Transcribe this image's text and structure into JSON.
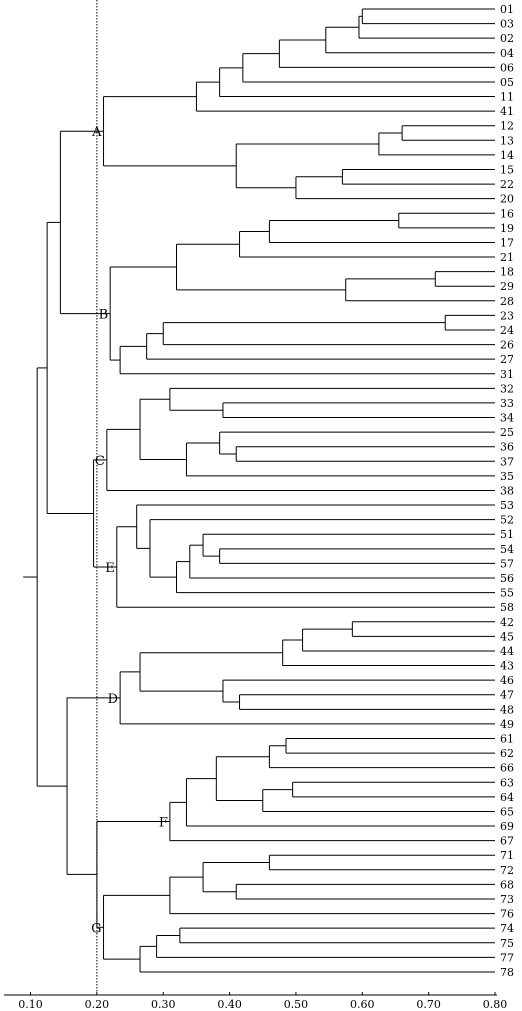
{
  "chart_data": {
    "type": "dendrogram",
    "title": "",
    "xlabel": "",
    "ylabel": "",
    "xlim": [
      0.06,
      0.8
    ],
    "x_ticks": [
      "0.10",
      "0.20",
      "0.30",
      "0.40",
      "0.50",
      "0.60",
      "0.70",
      "0.80"
    ],
    "cut_line": 0.2,
    "grid": false,
    "leaves": [
      "01",
      "03",
      "02",
      "04",
      "06",
      "05",
      "11",
      "41",
      "12",
      "13",
      "14",
      "15",
      "22",
      "20",
      "16",
      "19",
      "17",
      "21",
      "18",
      "29",
      "28",
      "23",
      "24",
      "26",
      "27",
      "31",
      "32",
      "33",
      "34",
      "25",
      "36",
      "37",
      "35",
      "38",
      "53",
      "52",
      "51",
      "54",
      "57",
      "56",
      "55",
      "58",
      "42",
      "45",
      "44",
      "43",
      "46",
      "47",
      "48",
      "49",
      "61",
      "62",
      "66",
      "63",
      "64",
      "65",
      "69",
      "67",
      "71",
      "72",
      "68",
      "73",
      "76",
      "74",
      "75",
      "77",
      "78"
    ],
    "merges": [
      {
        "id": "n1",
        "children": [
          "01",
          "03"
        ],
        "similarity": 0.6
      },
      {
        "id": "n2",
        "children": [
          "n1",
          "02"
        ],
        "similarity": 0.595
      },
      {
        "id": "n3",
        "children": [
          "n2",
          "04"
        ],
        "similarity": 0.545
      },
      {
        "id": "n4",
        "children": [
          "n3",
          "06"
        ],
        "similarity": 0.475
      },
      {
        "id": "n5",
        "children": [
          "n4",
          "05"
        ],
        "similarity": 0.42
      },
      {
        "id": "n6",
        "children": [
          "n5",
          "11"
        ],
        "similarity": 0.385
      },
      {
        "id": "n7",
        "children": [
          "n6",
          "41"
        ],
        "similarity": 0.35
      },
      {
        "id": "n8",
        "children": [
          "12",
          "13"
        ],
        "similarity": 0.66
      },
      {
        "id": "n9",
        "children": [
          "n8",
          "14"
        ],
        "similarity": 0.625
      },
      {
        "id": "n10",
        "children": [
          "15",
          "22"
        ],
        "similarity": 0.57
      },
      {
        "id": "n11",
        "children": [
          "n10",
          "20"
        ],
        "similarity": 0.5
      },
      {
        "id": "n12",
        "children": [
          "n9",
          "n11"
        ],
        "similarity": 0.41
      },
      {
        "id": "A",
        "children": [
          "n7",
          "n12"
        ],
        "similarity": 0.21
      },
      {
        "id": "n13",
        "children": [
          "16",
          "19"
        ],
        "similarity": 0.655
      },
      {
        "id": "n14",
        "children": [
          "n13",
          "17"
        ],
        "similarity": 0.46
      },
      {
        "id": "n15",
        "children": [
          "n14",
          "21"
        ],
        "similarity": 0.415
      },
      {
        "id": "n16",
        "children": [
          "18",
          "29"
        ],
        "similarity": 0.71
      },
      {
        "id": "n17",
        "children": [
          "n16",
          "28"
        ],
        "similarity": 0.575
      },
      {
        "id": "n18",
        "children": [
          "n15",
          "n17"
        ],
        "similarity": 0.32
      },
      {
        "id": "n19",
        "children": [
          "23",
          "24"
        ],
        "similarity": 0.725
      },
      {
        "id": "n20",
        "children": [
          "n19",
          "26"
        ],
        "similarity": 0.3
      },
      {
        "id": "n21",
        "children": [
          "n20",
          "27"
        ],
        "similarity": 0.275
      },
      {
        "id": "n22",
        "children": [
          "n21",
          "31"
        ],
        "similarity": 0.235
      },
      {
        "id": "B",
        "children": [
          "n18",
          "n22"
        ],
        "similarity": 0.22
      },
      {
        "id": "n23",
        "children": [
          "33",
          "34"
        ],
        "similarity": 0.39
      },
      {
        "id": "n24",
        "children": [
          "32",
          "n23"
        ],
        "similarity": 0.31
      },
      {
        "id": "n25",
        "children": [
          "36",
          "37"
        ],
        "similarity": 0.41
      },
      {
        "id": "n26",
        "children": [
          "25",
          "n25"
        ],
        "similarity": 0.385
      },
      {
        "id": "n27",
        "children": [
          "n26",
          "35"
        ],
        "similarity": 0.335
      },
      {
        "id": "n28",
        "children": [
          "n24",
          "n27"
        ],
        "similarity": 0.265
      },
      {
        "id": "C",
        "children": [
          "n28",
          "38"
        ],
        "similarity": 0.215
      },
      {
        "id": "n29",
        "children": [
          "54",
          "57"
        ],
        "similarity": 0.385
      },
      {
        "id": "n30",
        "children": [
          "51",
          "n29"
        ],
        "similarity": 0.36
      },
      {
        "id": "n31",
        "children": [
          "n30",
          "56"
        ],
        "similarity": 0.34
      },
      {
        "id": "n32",
        "children": [
          "n31",
          "55"
        ],
        "similarity": 0.32
      },
      {
        "id": "n33",
        "children": [
          "52",
          "n32"
        ],
        "similarity": 0.28
      },
      {
        "id": "n34",
        "children": [
          "53",
          "n33"
        ],
        "similarity": 0.26
      },
      {
        "id": "E",
        "children": [
          "n34",
          "58"
        ],
        "similarity": 0.23
      },
      {
        "id": "n35",
        "children": [
          "42",
          "45"
        ],
        "similarity": 0.585
      },
      {
        "id": "n36",
        "children": [
          "n35",
          "44"
        ],
        "similarity": 0.51
      },
      {
        "id": "n37",
        "children": [
          "n36",
          "43"
        ],
        "similarity": 0.48
      },
      {
        "id": "n38",
        "children": [
          "47",
          "48"
        ],
        "similarity": 0.415
      },
      {
        "id": "n39",
        "children": [
          "46",
          "n38"
        ],
        "similarity": 0.39
      },
      {
        "id": "n40",
        "children": [
          "n37",
          "n39"
        ],
        "similarity": 0.265
      },
      {
        "id": "D",
        "children": [
          "n40",
          "49"
        ],
        "similarity": 0.235
      },
      {
        "id": "n41",
        "children": [
          "61",
          "62"
        ],
        "similarity": 0.485
      },
      {
        "id": "n42",
        "children": [
          "n41",
          "66"
        ],
        "similarity": 0.46
      },
      {
        "id": "n43",
        "children": [
          "63",
          "64"
        ],
        "similarity": 0.495
      },
      {
        "id": "n44",
        "children": [
          "n43",
          "65"
        ],
        "similarity": 0.45
      },
      {
        "id": "n45",
        "children": [
          "n42",
          "n44"
        ],
        "similarity": 0.38
      },
      {
        "id": "n46",
        "children": [
          "n45",
          "69"
        ],
        "similarity": 0.335
      },
      {
        "id": "F",
        "children": [
          "n46",
          "67"
        ],
        "similarity": 0.31
      },
      {
        "id": "n47",
        "children": [
          "71",
          "72"
        ],
        "similarity": 0.46
      },
      {
        "id": "n48",
        "children": [
          "68",
          "73"
        ],
        "similarity": 0.41
      },
      {
        "id": "n49",
        "children": [
          "n47",
          "n48"
        ],
        "similarity": 0.36
      },
      {
        "id": "n50",
        "children": [
          "n49",
          "76"
        ],
        "similarity": 0.31
      },
      {
        "id": "n51",
        "children": [
          "74",
          "75"
        ],
        "similarity": 0.325
      },
      {
        "id": "n52",
        "children": [
          "n51",
          "77"
        ],
        "similarity": 0.29
      },
      {
        "id": "n53",
        "children": [
          "n52",
          "78"
        ],
        "similarity": 0.265
      },
      {
        "id": "G",
        "children": [
          "n50",
          "n53"
        ],
        "similarity": 0.21
      },
      {
        "id": "m1",
        "children": [
          "F",
          "G"
        ],
        "similarity": 0.2
      },
      {
        "id": "m2",
        "children": [
          "D",
          "m1"
        ],
        "similarity": 0.155
      },
      {
        "id": "m3",
        "children": [
          "C",
          "E"
        ],
        "similarity": 0.195
      },
      {
        "id": "m4",
        "children": [
          "A",
          "B"
        ],
        "similarity": 0.145
      },
      {
        "id": "m5",
        "children": [
          "m4",
          "m3"
        ],
        "similarity": 0.125
      },
      {
        "id": "root",
        "children": [
          "m5",
          "m2"
        ],
        "similarity": 0.11
      }
    ],
    "cluster_labels": [
      {
        "label": "A",
        "node": "A"
      },
      {
        "label": "B",
        "node": "B"
      },
      {
        "label": "C",
        "node": "C"
      },
      {
        "label": "E",
        "node": "E"
      },
      {
        "label": "D",
        "node": "D"
      },
      {
        "label": "F",
        "node": "F"
      },
      {
        "label": "G",
        "node": "G"
      }
    ]
  }
}
